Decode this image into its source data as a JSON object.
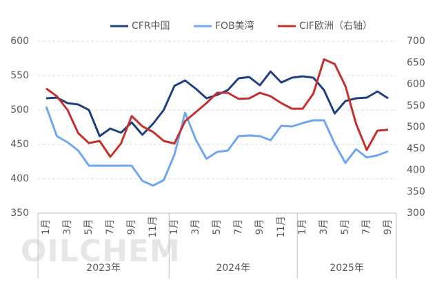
{
  "chart_data": {
    "type": "line",
    "watermark": "OILCHEM",
    "categories": [
      "1月",
      null,
      "3月",
      null,
      "5月",
      null,
      "7月",
      null,
      "9月",
      null,
      "11月",
      null,
      "1月",
      null,
      "3月",
      null,
      "5月",
      null,
      "7月",
      null,
      "9月",
      null,
      "11月",
      null,
      "1月",
      null,
      "3月",
      null,
      "5月",
      null,
      "7月",
      null,
      "9月"
    ],
    "groups": [
      {
        "label": "2023年",
        "count": 12
      },
      {
        "label": "2024年",
        "count": 12
      },
      {
        "label": "2025年",
        "count": 9
      }
    ],
    "series": [
      {
        "name": "CFR中国",
        "color": "#1f3f7f",
        "axis": "y",
        "values": [
          517,
          518,
          510,
          508,
          500,
          462,
          473,
          467,
          482,
          464,
          480,
          500,
          535,
          543,
          531,
          517,
          522,
          529,
          546,
          548,
          536,
          556,
          540,
          547,
          549,
          547,
          529,
          495,
          513,
          517,
          518,
          527,
          517
        ]
      },
      {
        "name": "FOB美湾",
        "color": "#6ea6f2",
        "axis": "y",
        "values": [
          505,
          462,
          453,
          441,
          419,
          419,
          419,
          419,
          419,
          397,
          390,
          398,
          435,
          496,
          457,
          429,
          439,
          441,
          462,
          463,
          462,
          456,
          477,
          476,
          481,
          485,
          485,
          451,
          423,
          443,
          431,
          434,
          440
        ]
      },
      {
        "name": "CIF欧洲（右轴）",
        "color": "#c4312c",
        "axis": "y2",
        "values": [
          590,
          572,
          540,
          486,
          463,
          468,
          431,
          462,
          526,
          502,
          489,
          468,
          462,
          514,
          535,
          556,
          580,
          580,
          566,
          567,
          580,
          572,
          556,
          543,
          543,
          578,
          658,
          647,
          596,
          508,
          447,
          492,
          494
        ]
      }
    ],
    "ylim": [
      350,
      600
    ],
    "yticks": [
      350,
      400,
      450,
      500,
      550,
      600
    ],
    "y2lim": [
      300,
      700
    ],
    "y2ticks": [
      300,
      350,
      400,
      450,
      500,
      550,
      600,
      650,
      700
    ],
    "grid": true,
    "legend": "top"
  }
}
